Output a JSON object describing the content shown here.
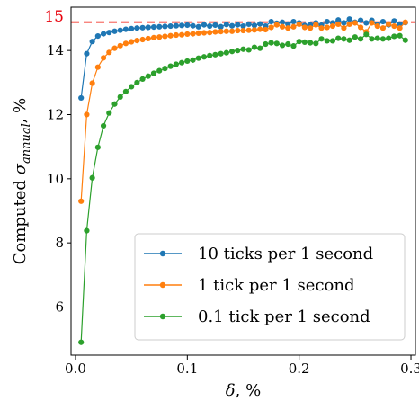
{
  "chart_data": {
    "type": "line",
    "xlabel_var": "δ",
    "xlabel_unit": ", %",
    "ylabel_prefix": "Computed ",
    "ylabel_var": "σ",
    "ylabel_sub": "annual",
    "ylabel_unit": ", %",
    "xlim": [
      -0.004,
      0.304
    ],
    "ylim": [
      4.5,
      15.35
    ],
    "xticks": [
      0.0,
      0.1,
      0.2,
      0.3
    ],
    "xtick_labels": [
      "0.0",
      "0.1",
      "0.2",
      "0.3"
    ],
    "yticks": [
      6,
      8,
      10,
      12,
      14
    ],
    "ytick_labels": [
      "6",
      "8",
      "10",
      "12",
      "14"
    ],
    "reference_line": {
      "y": 14.88,
      "label": "15",
      "color": "#f8766d"
    },
    "legend_position": "lower-right",
    "x": [
      0.005,
      0.01,
      0.015,
      0.02,
      0.025,
      0.03,
      0.035,
      0.04,
      0.045,
      0.05,
      0.055,
      0.06,
      0.065,
      0.07,
      0.075,
      0.08,
      0.085,
      0.09,
      0.095,
      0.1,
      0.105,
      0.11,
      0.115,
      0.12,
      0.125,
      0.13,
      0.135,
      0.14,
      0.145,
      0.15,
      0.155,
      0.16,
      0.165,
      0.17,
      0.175,
      0.18,
      0.185,
      0.19,
      0.195,
      0.2,
      0.205,
      0.21,
      0.215,
      0.22,
      0.225,
      0.23,
      0.235,
      0.24,
      0.245,
      0.25,
      0.255,
      0.26,
      0.265,
      0.27,
      0.275,
      0.28,
      0.285,
      0.29,
      0.295
    ],
    "series": [
      {
        "name": "10 ticks per 1 second",
        "color": "#1f77b4",
        "values": [
          12.52,
          13.9,
          14.28,
          14.45,
          14.52,
          14.56,
          14.6,
          14.63,
          14.66,
          14.68,
          14.7,
          14.71,
          14.72,
          14.73,
          14.74,
          14.75,
          14.76,
          14.77,
          14.78,
          14.79,
          14.77,
          14.74,
          14.8,
          14.76,
          14.79,
          14.74,
          14.81,
          14.77,
          14.8,
          14.76,
          14.82,
          14.78,
          14.83,
          14.76,
          14.9,
          14.85,
          14.88,
          14.82,
          14.9,
          14.86,
          14.78,
          14.8,
          14.86,
          14.79,
          14.9,
          14.86,
          14.95,
          14.86,
          14.98,
          14.88,
          14.94,
          14.86,
          14.94,
          14.8,
          14.9,
          14.8,
          14.92,
          14.82,
          14.87
        ]
      },
      {
        "name": "1 tick per 1 second",
        "color": "#ff7f0e",
        "values": [
          9.3,
          12.0,
          12.98,
          13.48,
          13.77,
          13.94,
          14.07,
          14.15,
          14.22,
          14.27,
          14.31,
          14.34,
          14.37,
          14.4,
          14.42,
          14.44,
          14.46,
          14.48,
          14.49,
          14.51,
          14.52,
          14.54,
          14.55,
          14.56,
          14.58,
          14.59,
          14.6,
          14.6,
          14.62,
          14.62,
          14.63,
          14.64,
          14.66,
          14.65,
          14.72,
          14.8,
          14.74,
          14.7,
          14.74,
          14.82,
          14.72,
          14.7,
          14.8,
          14.7,
          14.72,
          14.76,
          14.82,
          14.7,
          14.82,
          14.86,
          14.72,
          14.58,
          14.86,
          14.76,
          14.7,
          14.82,
          14.76,
          14.7,
          14.88
        ]
      },
      {
        "name": "0.1 tick per 1 second",
        "color": "#2ca02c",
        "values": [
          4.9,
          8.38,
          10.03,
          10.98,
          11.65,
          12.05,
          12.33,
          12.55,
          12.72,
          12.87,
          13.0,
          13.11,
          13.2,
          13.29,
          13.37,
          13.44,
          13.51,
          13.57,
          13.62,
          13.67,
          13.7,
          13.76,
          13.8,
          13.84,
          13.87,
          13.9,
          13.93,
          13.97,
          14.0,
          14.04,
          14.02,
          14.1,
          14.07,
          14.2,
          14.24,
          14.22,
          14.16,
          14.2,
          14.14,
          14.28,
          14.26,
          14.24,
          14.22,
          14.36,
          14.3,
          14.3,
          14.38,
          14.36,
          14.32,
          14.42,
          14.36,
          14.5,
          14.36,
          14.38,
          14.36,
          14.38,
          14.44,
          14.46,
          14.32
        ]
      }
    ]
  }
}
